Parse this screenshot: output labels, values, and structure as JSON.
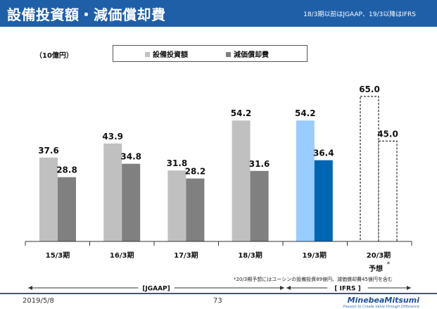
{
  "header": {
    "title": "設備投資額・減価償却費",
    "note": "18/3期以前はJGAAP、19/3以降はIFRS"
  },
  "unit_label": "（10億円）",
  "legend": {
    "capex": "設備投資額",
    "depreciation": "減価償却費"
  },
  "forecast_label": "予想",
  "forecast_mark": "*",
  "footnote": "*20/3期予想にはユーシンの設備投資89億円、減価償却費45億円を含む",
  "standards": {
    "jgaap": "[JGAAP]",
    "ifrs": "[ IFRS ]"
  },
  "footer": {
    "date": "2019/5/8",
    "page": "73",
    "company": "MinebeaMitsumi",
    "tagline": "Passion to Create Value through Difference"
  },
  "colors": {
    "header": "#1f5fa8",
    "capex_jgaap": "#c0c0c0",
    "depreciation_jgaap": "#808080",
    "capex_ifrs": "#99ccff",
    "depreciation_ifrs": "#0066b3"
  },
  "chart_data": {
    "type": "bar",
    "categories": [
      "15/3期",
      "16/3期",
      "17/3期",
      "18/3期",
      "19/3期",
      "20/3期"
    ],
    "series": [
      {
        "name": "設備投資額",
        "values": [
          37.6,
          43.9,
          31.8,
          54.2,
          54.2,
          65.0
        ]
      },
      {
        "name": "減価償却費",
        "values": [
          28.8,
          34.8,
          28.2,
          31.6,
          36.4,
          45.0
        ]
      }
    ],
    "value_labels": {
      "capex": [
        "37.6",
        "43.9",
        "31.8",
        "54.2",
        "54.2",
        "65.0"
      ],
      "depreciation": [
        "28.8",
        "34.8",
        "28.2",
        "31.6",
        "36.4",
        "45.0"
      ]
    },
    "forecast_category": "20/3期",
    "accounting_standard": [
      "JGAAP",
      "JGAAP",
      "JGAAP",
      "JGAAP",
      "IFRS",
      "IFRS"
    ],
    "ylabel": "（10億円）",
    "ylim": [
      0,
      70
    ],
    "grid": false,
    "legend_position": "top"
  }
}
